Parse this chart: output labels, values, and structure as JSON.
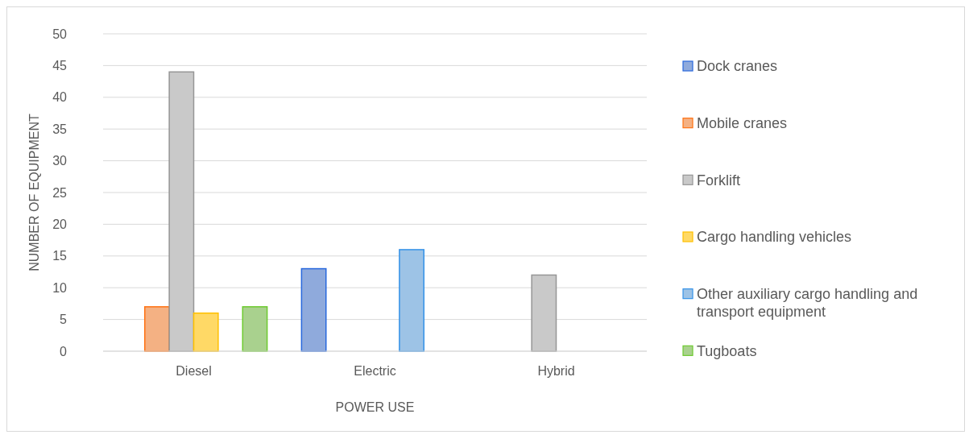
{
  "chart_data": {
    "type": "bar",
    "xlabel": "POWER USE",
    "ylabel": "NUMBER OF EQUIPMENT",
    "categories": [
      "Diesel",
      "Electric",
      "Hybrid"
    ],
    "series": [
      {
        "name": "Dock cranes",
        "color": "#8faadc",
        "values": [
          0,
          13,
          0
        ]
      },
      {
        "name": "Mobile cranes",
        "color": "#f4b183",
        "values": [
          7,
          0,
          0
        ]
      },
      {
        "name": "Forklift",
        "color": "#c9c9c9",
        "values": [
          44,
          0,
          12
        ]
      },
      {
        "name": "Cargo handling vehicles",
        "color": "#ffd966",
        "values": [
          6,
          0,
          0
        ]
      },
      {
        "name": "Other auxiliary cargo handling and transport equipment",
        "color": "#9dc3e6",
        "values": [
          0,
          16,
          0
        ]
      },
      {
        "name": "Tugboats",
        "color": "#a9d18e",
        "values": [
          7,
          0,
          0
        ]
      }
    ],
    "ylim": [
      0,
      50
    ],
    "yticks": [
      0,
      5,
      10,
      15,
      20,
      25,
      30,
      35,
      40,
      45,
      50
    ],
    "grid": "y",
    "legend": "right"
  }
}
